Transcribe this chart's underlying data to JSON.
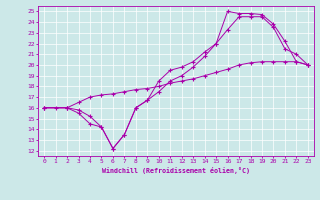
{
  "xlabel": "Windchill (Refroidissement éolien,°C)",
  "bg_color": "#cce8e8",
  "line_color": "#aa00aa",
  "xlim": [
    -0.5,
    23.5
  ],
  "ylim": [
    11.5,
    25.5
  ],
  "xticks": [
    0,
    1,
    2,
    3,
    4,
    5,
    6,
    7,
    8,
    9,
    10,
    11,
    12,
    13,
    14,
    15,
    16,
    17,
    18,
    19,
    20,
    21,
    22,
    23
  ],
  "yticks": [
    12,
    13,
    14,
    15,
    16,
    17,
    18,
    19,
    20,
    21,
    22,
    23,
    24,
    25
  ],
  "line1_x": [
    0,
    1,
    2,
    3,
    4,
    5,
    6,
    7,
    8,
    9,
    10,
    11,
    12,
    13,
    14,
    15,
    16,
    17,
    18,
    19,
    20,
    21,
    22,
    23
  ],
  "line1_y": [
    16,
    16,
    16,
    15.5,
    14.5,
    14.2,
    12.2,
    13.5,
    16,
    16.7,
    18.5,
    19.5,
    19.8,
    20.3,
    21.2,
    22,
    25,
    24.8,
    24.8,
    24.7,
    23.8,
    22.2,
    20.3,
    20
  ],
  "line2_x": [
    0,
    2,
    3,
    4,
    5,
    6,
    7,
    8,
    9,
    10,
    11,
    12,
    13,
    14,
    15,
    16,
    17,
    18,
    19,
    20,
    21,
    22,
    23
  ],
  "line2_y": [
    16,
    16,
    15.8,
    15.2,
    14.2,
    12.2,
    13.5,
    16,
    16.7,
    17.5,
    18.5,
    19,
    19.8,
    20.8,
    22,
    23.3,
    24.5,
    24.5,
    24.5,
    23.5,
    21.5,
    21,
    20
  ],
  "line3_x": [
    0,
    2,
    3,
    4,
    5,
    6,
    7,
    8,
    9,
    10,
    11,
    12,
    13,
    14,
    15,
    16,
    17,
    18,
    19,
    20,
    21,
    22,
    23
  ],
  "line3_y": [
    16,
    16,
    16.5,
    17,
    17.2,
    17.3,
    17.5,
    17.7,
    17.8,
    18,
    18.3,
    18.5,
    18.7,
    19,
    19.3,
    19.6,
    20,
    20.2,
    20.3,
    20.3,
    20.3,
    20.3,
    20
  ]
}
